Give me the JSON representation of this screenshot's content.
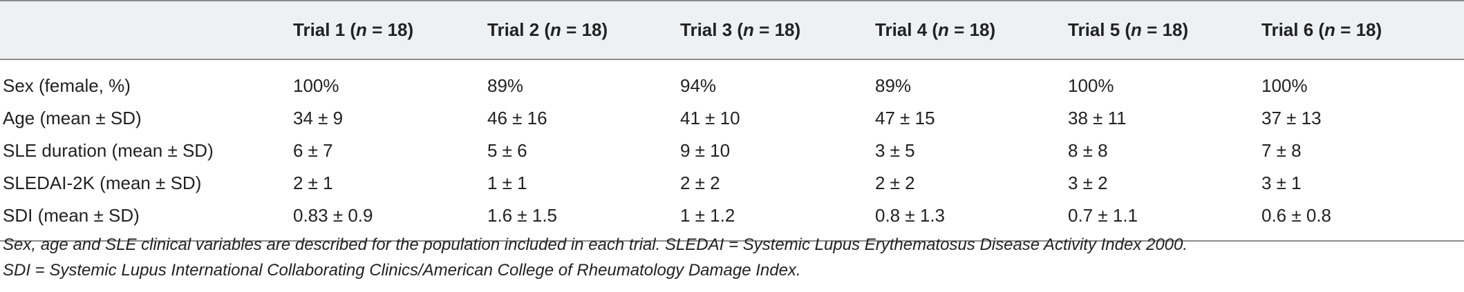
{
  "table": {
    "headers": [
      {
        "label": "",
        "n_label": ""
      },
      {
        "label": "Trial 1 (",
        "n": "n",
        "rest": " = 18)"
      },
      {
        "label": "Trial 2 (",
        "n": "n",
        "rest": " = 18)"
      },
      {
        "label": "Trial 3 (",
        "n": "n",
        "rest": " = 18)"
      },
      {
        "label": "Trial 4 (",
        "n": "n",
        "rest": " = 18)"
      },
      {
        "label": "Trial 5 (",
        "n": "n",
        "rest": " = 18)"
      },
      {
        "label": "Trial 6 (",
        "n": "n",
        "rest": " = 18)"
      }
    ],
    "rows": [
      {
        "label": "Sex (female, %)",
        "values": [
          "100%",
          "89%",
          "94%",
          "89%",
          "100%",
          "100%"
        ]
      },
      {
        "label": "Age (mean ± SD)",
        "values": [
          "34 ± 9",
          "46 ± 16",
          "41 ± 10",
          "47 ± 15",
          "38 ± 11",
          "37 ± 13"
        ]
      },
      {
        "label": "SLE duration (mean ± SD)",
        "values": [
          "6 ± 7",
          "5 ± 6",
          "9 ± 10",
          "3 ± 5",
          "8 ± 8",
          "7 ± 8"
        ]
      },
      {
        "label": "SLEDAI-2K (mean ± SD)",
        "values": [
          "2 ± 1",
          "1 ± 1",
          "2 ± 2",
          "2 ± 2",
          "3 ± 2",
          "3 ± 1"
        ]
      },
      {
        "label": "SDI (mean ± SD)",
        "values": [
          "0.83 ± 0.9",
          "1.6 ± 1.5",
          "1 ± 1.2",
          "0.8 ± 1.3",
          "0.7 ± 1.1",
          "0.6 ± 0.8"
        ]
      }
    ]
  },
  "footnote": {
    "line1": "Sex, age and SLE clinical variables are described for the population included in each trial. SLEDAI = Systemic Lupus Erythematosus Disease Activity Index 2000.",
    "line2": "SDI = Systemic Lupus International Collaborating Clinics/American College of Rheumatology Damage Index."
  }
}
